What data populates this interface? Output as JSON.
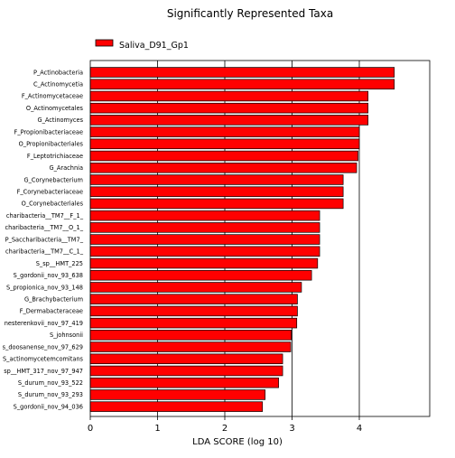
{
  "chart_data": {
    "type": "bar",
    "orientation": "horizontal",
    "title": "Significantly Represented Taxa",
    "xlabel": "LDA SCORE (log 10)",
    "ylabel": "",
    "xlim": [
      0,
      5
    ],
    "xticks": [
      0,
      1,
      2,
      3,
      4
    ],
    "grid": "vertical",
    "legend_position": "top-left",
    "bar_color": "#ff0000",
    "series": [
      {
        "name": "Saliva_D91_Gp1",
        "categories": [
          "P_Actinobacteria",
          "C_Actinomycetia",
          "F_Actinomycetaceae",
          "O_Actinomycetales",
          "G_Actinomyces",
          "F_Propionibacteriaceae",
          "O_Propionibacteriales",
          "F_Leptotrichiaceae",
          "G_Arachnia",
          "G_Corynebacterium",
          "F_Corynebacteriaceae",
          "O_Corynebacteriales",
          "charibacteria__TM7__F_1_",
          "charibacteria__TM7__O_1_",
          "P_Saccharibacteria__TM7_",
          "charibacteria__TM7__C_1_",
          "S_sp__HMT_225",
          "S_gordonii_nov_93_638",
          "S_propionica_nov_93_148",
          "G_Brachybacterium",
          "F_Dermabacteraceae",
          "nesterenkovii_nov_97_419",
          "S_johnsonii",
          "s_doosanense_nov_97_629",
          "S_actinomycetemcomitans",
          "sp__HMT_317_nov_97_947",
          "S_durum_nov_93_522",
          "S_durum_nov_93_293",
          "S_gordonii_nov_94_036"
        ],
        "values": [
          4.52,
          4.52,
          4.13,
          4.13,
          4.13,
          4.0,
          4.0,
          3.98,
          3.96,
          3.76,
          3.76,
          3.76,
          3.41,
          3.41,
          3.41,
          3.41,
          3.38,
          3.29,
          3.14,
          3.08,
          3.08,
          3.07,
          2.99,
          2.98,
          2.86,
          2.86,
          2.8,
          2.6,
          2.56
        ]
      }
    ]
  }
}
